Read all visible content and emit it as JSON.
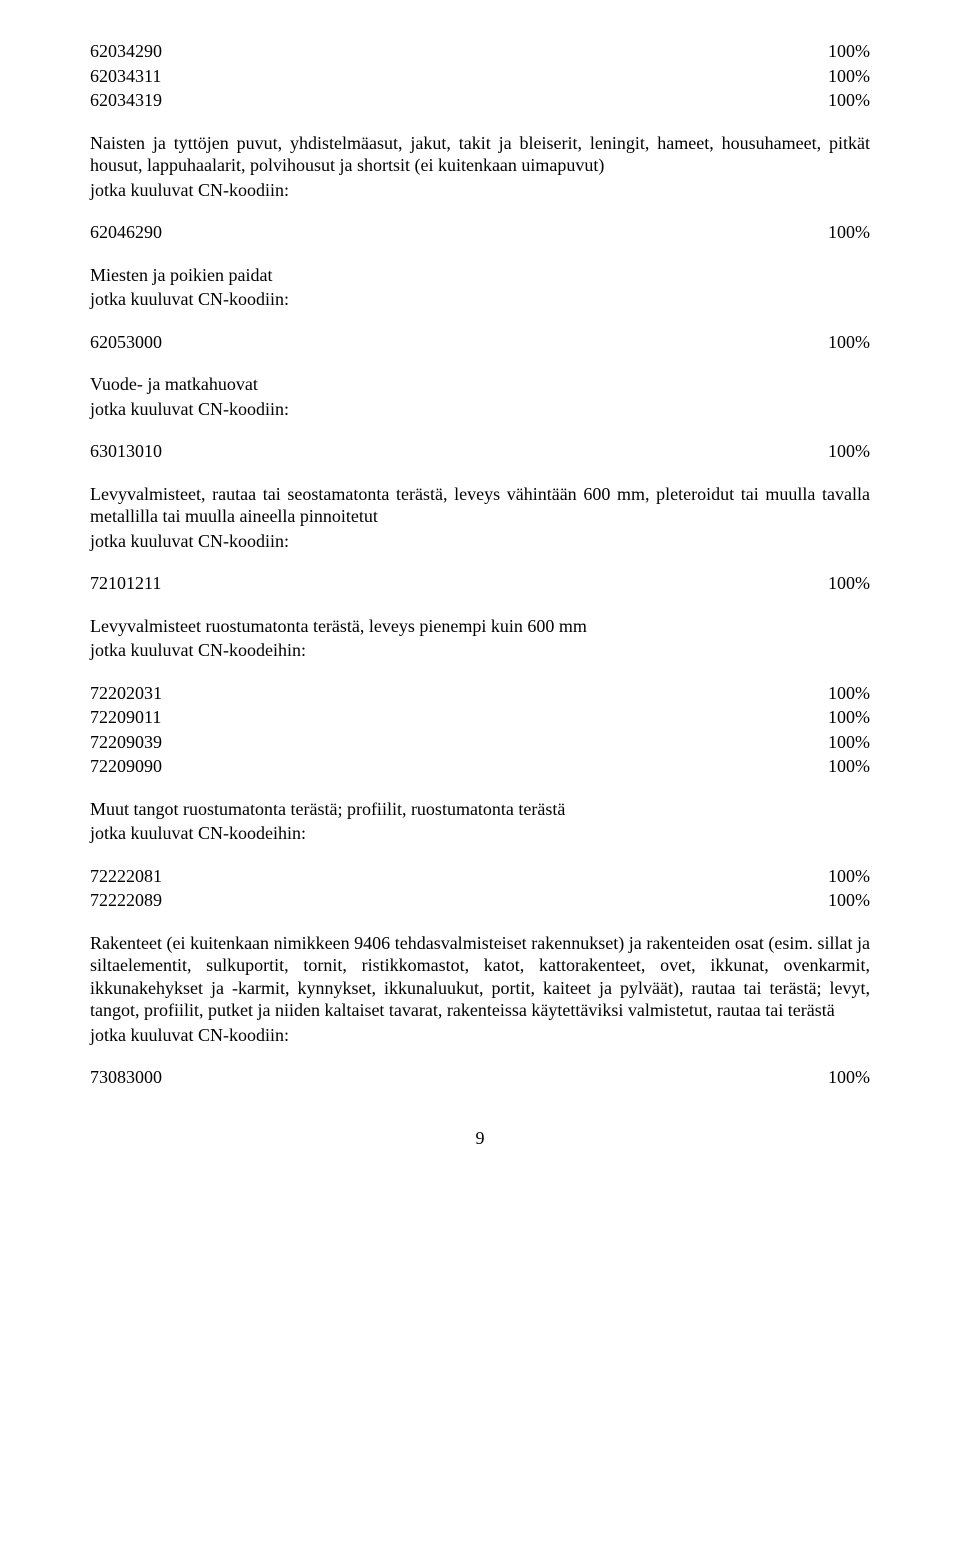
{
  "rows1": [
    {
      "code": "62034290",
      "pct": "100%"
    },
    {
      "code": "62034311",
      "pct": "100%"
    },
    {
      "code": "62034319",
      "pct": "100%"
    }
  ],
  "section1": {
    "text": "Naisten ja tyttöjen puvut, yhdistelmäasut, jakut, takit ja bleiserit, leningit, hameet, housuhameet, pitkät housut, lappuhaalarit, polvihousut ja shortsit (ei kuitenkaan uimapuvut)",
    "sub": "jotka kuuluvat CN-koodiin:"
  },
  "row2": {
    "code": "62046290",
    "pct": "100%"
  },
  "section2": {
    "text": "Miesten ja poikien paidat",
    "sub": "jotka kuuluvat CN-koodiin:"
  },
  "row3": {
    "code": "62053000",
    "pct": "100%"
  },
  "section3": {
    "text": "Vuode- ja matkahuovat",
    "sub": "jotka kuuluvat CN-koodiin:"
  },
  "row4": {
    "code": "63013010",
    "pct": "100%"
  },
  "section4": {
    "text": "Levyvalmisteet, rautaa tai seostamatonta terästä, leveys vähintään 600 mm, pleteroidut tai muulla tavalla metallilla tai muulla aineella pinnoitetut",
    "sub": "jotka kuuluvat CN-koodiin:"
  },
  "row5": {
    "code": "72101211",
    "pct": "100%"
  },
  "section5": {
    "text": "Levyvalmisteet ruostumatonta terästä, leveys pienempi kuin 600 mm",
    "sub": "jotka kuuluvat CN-koodeihin:"
  },
  "rows6": [
    {
      "code": "72202031",
      "pct": "100%"
    },
    {
      "code": "72209011",
      "pct": "100%"
    },
    {
      "code": "72209039",
      "pct": "100%"
    },
    {
      "code": "72209090",
      "pct": "100%"
    }
  ],
  "section6": {
    "text": "Muut tangot ruostumatonta terästä; profiilit, ruostumatonta terästä",
    "sub": "jotka kuuluvat CN-koodeihin:"
  },
  "rows7": [
    {
      "code": "72222081",
      "pct": "100%"
    },
    {
      "code": "72222089",
      "pct": "100%"
    }
  ],
  "section7": {
    "text": "Rakenteet (ei kuitenkaan nimikkeen 9406 tehdasvalmisteiset rakennukset) ja rakenteiden osat (esim. sillat ja siltaelementit, sulkuportit, tornit, ristikkomastot, katot, kattorakenteet, ovet, ikkunat, ovenkarmit, ikkunakehykset ja -karmit, kynnykset, ikkunaluukut, portit, kaiteet ja pylväät), rautaa tai terästä; levyt, tangot, profiilit, putket ja niiden kaltaiset tavarat, rakenteissa käytettäviksi valmistetut, rautaa tai terästä",
    "sub": "jotka kuuluvat CN-koodiin:"
  },
  "row8": {
    "code": "73083000",
    "pct": "100%"
  },
  "pageNumber": "9"
}
